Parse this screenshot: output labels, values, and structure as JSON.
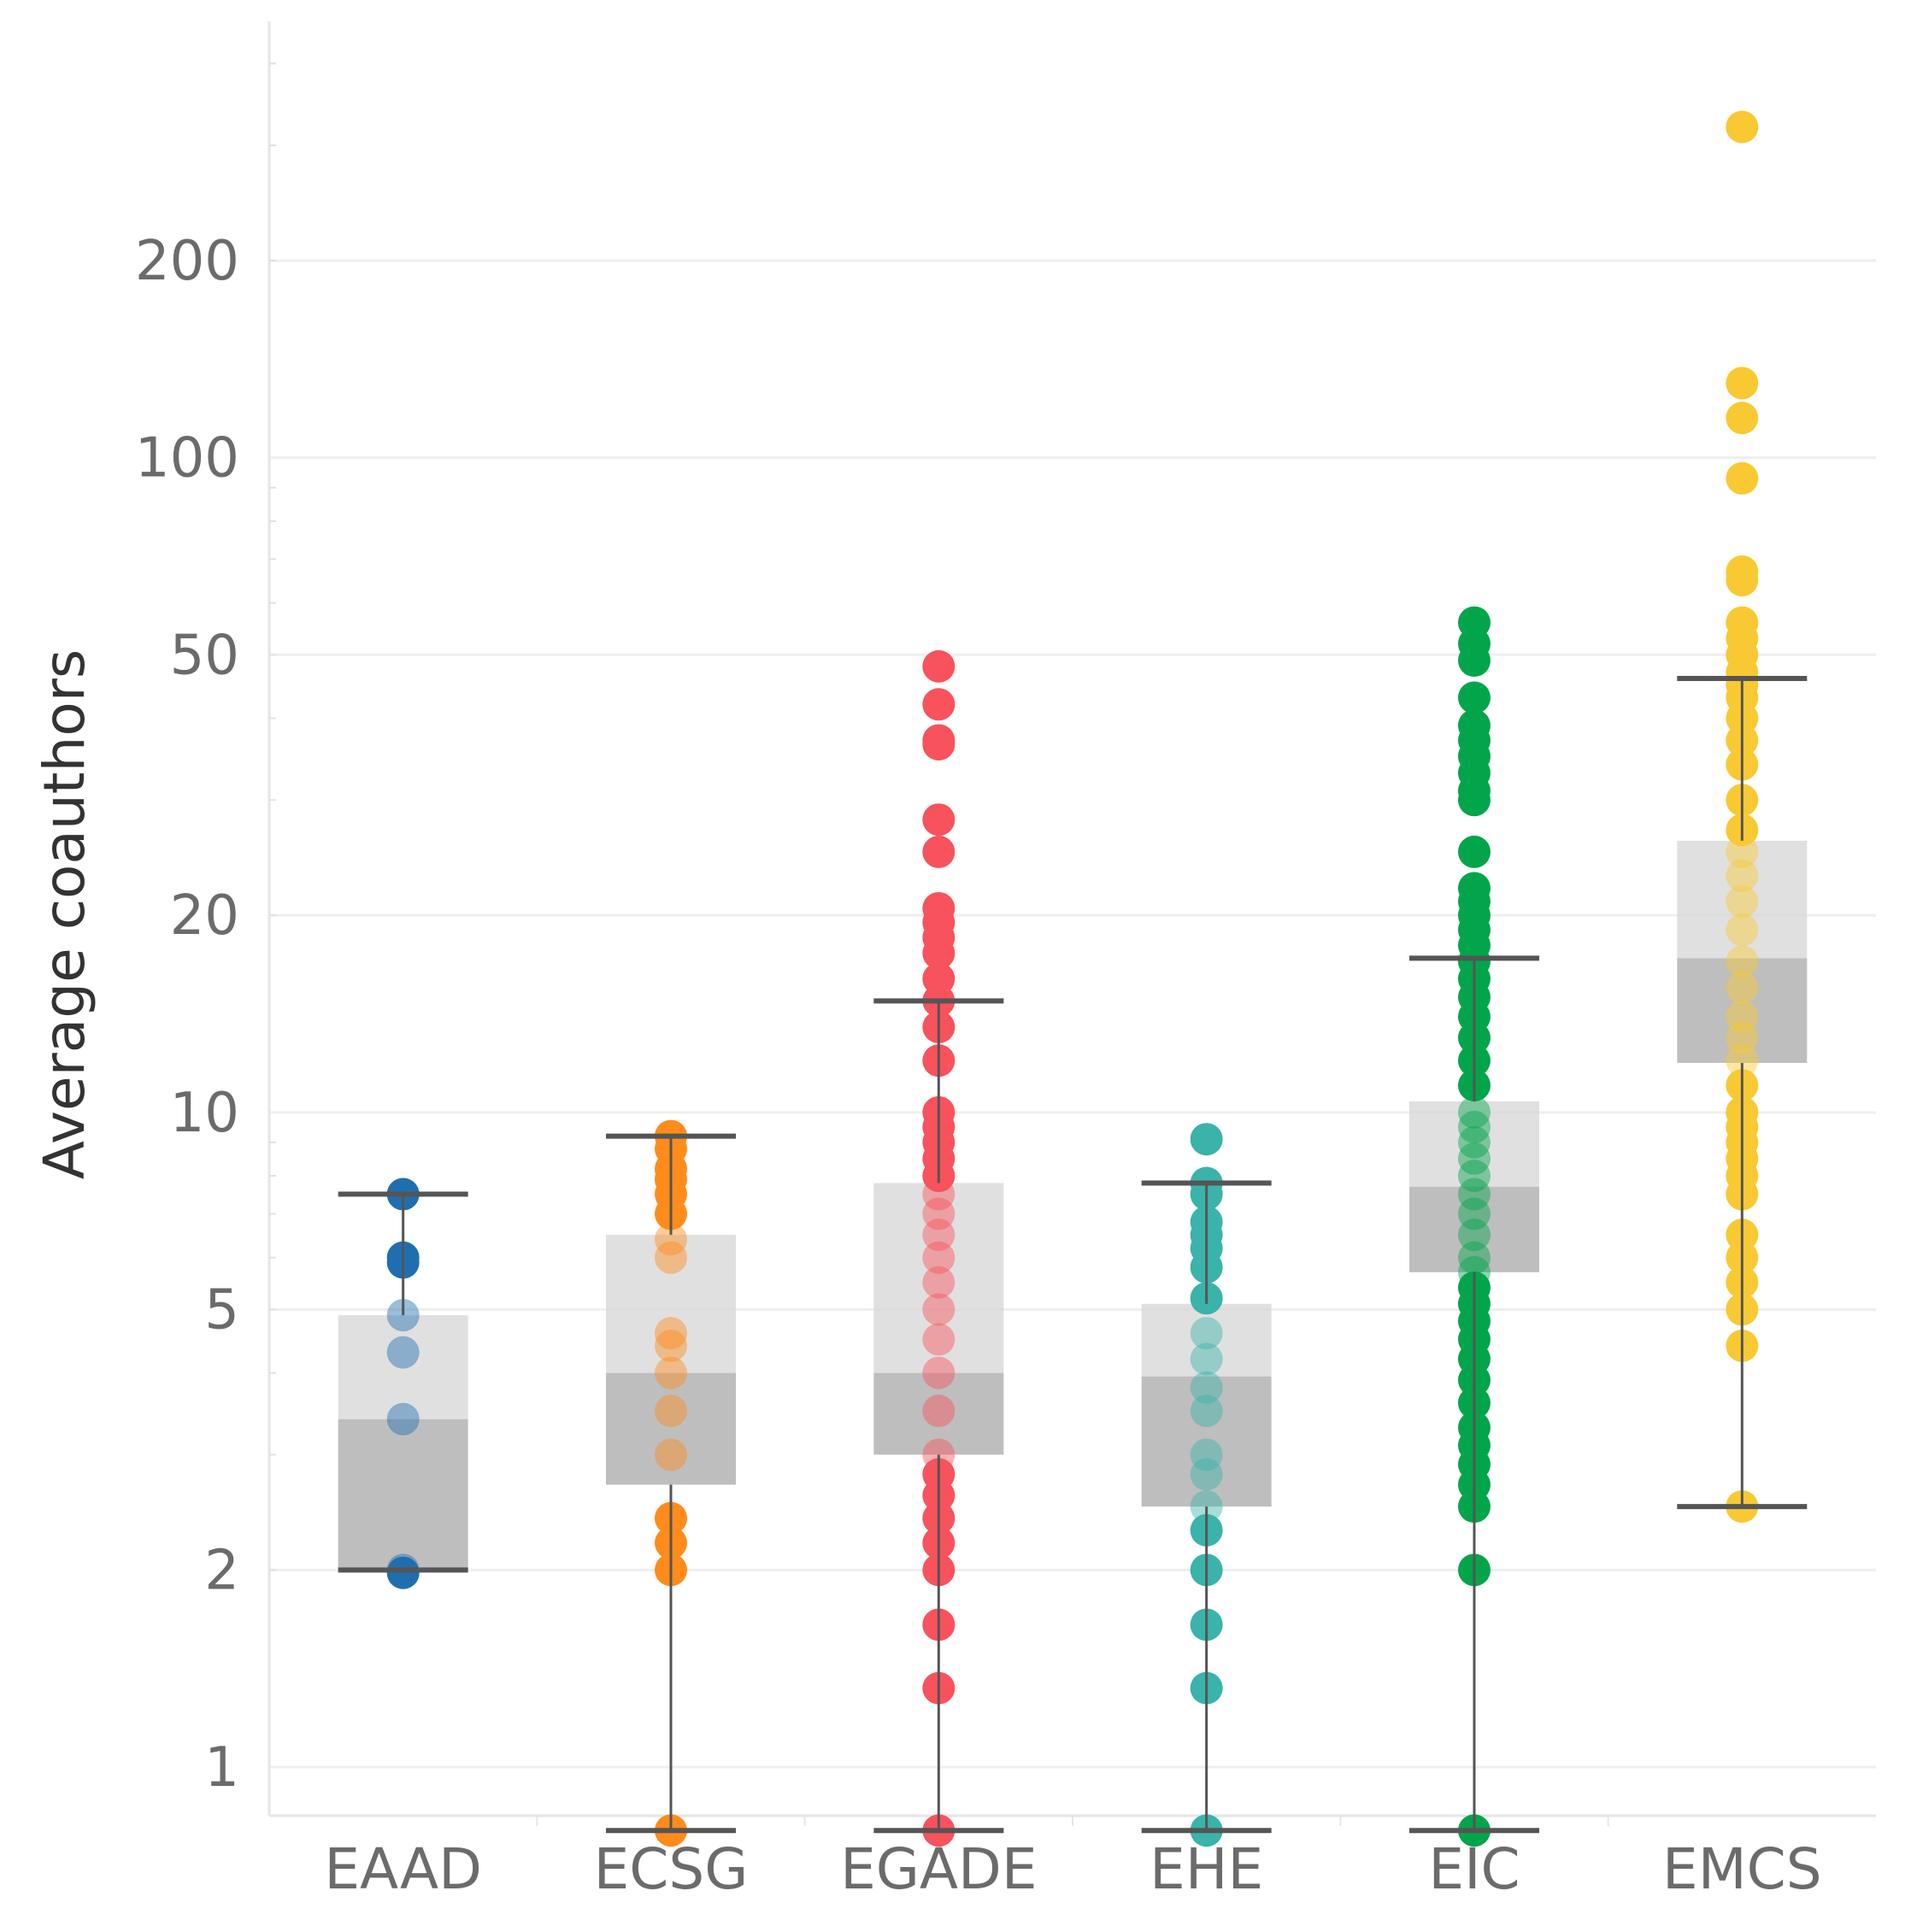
{
  "chart_data": {
    "type": "box",
    "title": "",
    "xlabel": "",
    "ylabel": "Average coauthors",
    "yscale": "log",
    "ylim": [
      0.8,
      450
    ],
    "grid": true,
    "yticks": [
      1,
      2,
      5,
      10,
      20,
      50,
      100,
      200
    ],
    "ytick_labels": [
      "1",
      "2",
      "5",
      "10",
      "20",
      "50",
      "100",
      "200"
    ],
    "categories": [
      "EAAD",
      "ECSG",
      "EGADE",
      "EHE",
      "EIC",
      "EMCS"
    ],
    "colors": [
      "#1f6fb0",
      "#ff8c1a",
      "#f8525c",
      "#3ab3aa",
      "#03a54b",
      "#f9c933"
    ],
    "boxes": [
      {
        "name": "EAAD",
        "whisker_low": 2.0,
        "q1": 2.0,
        "median": 3.4,
        "q3": 4.9,
        "whisker_high": 7.5
      },
      {
        "name": "ECSG",
        "whisker_low": 0.8,
        "q1": 2.7,
        "median": 4.0,
        "q3": 6.5,
        "whisker_high": 9.2
      },
      {
        "name": "EGADE",
        "whisker_low": 0.8,
        "q1": 3.0,
        "median": 4.0,
        "q3": 7.8,
        "whisker_high": 14.8
      },
      {
        "name": "EHE",
        "whisker_low": 0.8,
        "q1": 2.5,
        "median": 3.95,
        "q3": 5.1,
        "whisker_high": 7.8
      },
      {
        "name": "EIC",
        "whisker_low": 0.8,
        "q1": 5.7,
        "median": 7.7,
        "q3": 10.4,
        "whisker_high": 17.2
      },
      {
        "name": "EMCS",
        "whisker_low": 2.5,
        "q1": 11.9,
        "median": 17.2,
        "q3": 26.0,
        "whisker_high": 46.0
      }
    ],
    "points": [
      {
        "name": "EAAD",
        "values": [
          7.5,
          6.0,
          5.9,
          4.9,
          4.3,
          3.4,
          2.0,
          1.98
        ]
      },
      {
        "name": "ECSG",
        "values": [
          9.2,
          8.8,
          8.2,
          7.9,
          7.5,
          7.0,
          6.4,
          6.0,
          4.6,
          4.4,
          4.0,
          3.5,
          3.0,
          2.4,
          2.2,
          2.0,
          0.8
        ]
      },
      {
        "name": "EGADE",
        "values": [
          48.0,
          42.0,
          37.0,
          36.5,
          28.0,
          25.0,
          20.5,
          19.5,
          18.5,
          17.5,
          16.0,
          14.8,
          13.5,
          12.0,
          10.0,
          9.5,
          9.0,
          8.5,
          8.0,
          7.5,
          7.0,
          6.5,
          6.0,
          5.5,
          5.0,
          4.5,
          4.0,
          3.5,
          3.0,
          2.8,
          2.6,
          2.4,
          2.2,
          2.0,
          1.65,
          1.32,
          0.8
        ]
      },
      {
        "name": "EHE",
        "values": [
          9.1,
          7.8,
          7.5,
          6.8,
          6.5,
          6.2,
          5.8,
          5.2,
          4.6,
          4.2,
          3.8,
          3.5,
          3.0,
          2.8,
          2.5,
          2.3,
          2.0,
          1.65,
          1.32,
          0.8
        ]
      },
      {
        "name": "EIC",
        "values": [
          56.0,
          52.0,
          49.0,
          43.0,
          39.0,
          37.0,
          35.0,
          33.0,
          31.0,
          30.0,
          25.0,
          22.0,
          21.0,
          20.0,
          19.0,
          18.0,
          17.0,
          16.0,
          15.0,
          14.0,
          13.0,
          12.0,
          11.0,
          10.0,
          9.5,
          9.0,
          8.5,
          8.0,
          7.5,
          7.0,
          6.5,
          6.0,
          5.7,
          5.4,
          5.1,
          4.8,
          4.5,
          4.2,
          3.9,
          3.6,
          3.3,
          3.1,
          2.9,
          2.7,
          2.5,
          2.0,
          0.8
        ]
      },
      {
        "name": "EMCS",
        "values": [
          320.0,
          130.0,
          115.0,
          93.0,
          67.0,
          65.0,
          56.0,
          53.0,
          50.0,
          47.0,
          45.0,
          43.0,
          40.0,
          37.0,
          34.0,
          30.0,
          27.0,
          25.0,
          23.0,
          21.0,
          19.0,
          17.0,
          15.5,
          14.0,
          13.0,
          12.0,
          11.0,
          10.0,
          9.5,
          9.0,
          8.5,
          8.0,
          7.5,
          6.5,
          6.0,
          5.5,
          5.0,
          4.4,
          2.5
        ]
      }
    ]
  }
}
